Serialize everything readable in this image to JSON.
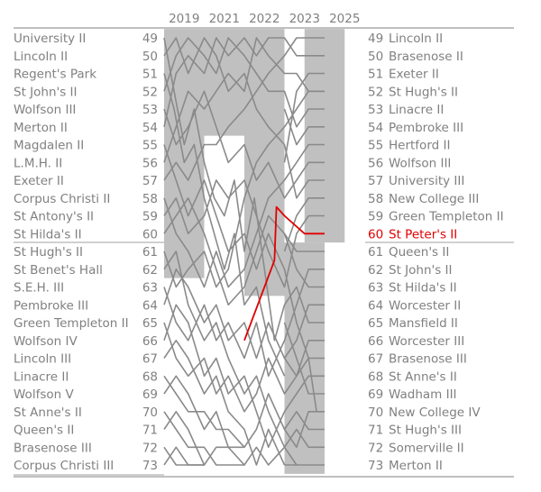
{
  "chart_data": {
    "type": "line",
    "title": "",
    "xlabel": "",
    "ylabel": "",
    "years": [
      "2019",
      "2021",
      "2022",
      "2023",
      "2025"
    ],
    "positions": [
      49,
      50,
      51,
      52,
      53,
      54,
      55,
      56,
      57,
      58,
      59,
      60,
      61,
      62,
      63,
      64,
      65,
      66,
      67,
      68,
      69,
      70,
      71,
      72,
      73
    ],
    "start_crews": [
      "University II",
      "Lincoln II",
      "Regent's Park",
      "St John's II",
      "Wolfson III",
      "Merton II",
      "Magdalen II",
      "L.M.H. II",
      "Exeter II",
      "Corpus Christi II",
      "St Antony's II",
      "St Hilda's II",
      "St Hugh's II",
      "St Benet's Hall",
      "S.E.H. III",
      "Pembroke III",
      "Green Templeton II",
      "Wolfson IV",
      "Lincoln III",
      "Linacre II",
      "Wolfson V",
      "St Anne's II",
      "Queen's II",
      "Brasenose III",
      "Corpus Christi III"
    ],
    "end_crews": [
      "Lincoln II",
      "Brasenose II",
      "Exeter II",
      "St Hugh's II",
      "Linacre II",
      "Pembroke III",
      "Hertford II",
      "Wolfson III",
      "University III",
      "New College III",
      "Green Templeton II",
      "St Peter's II",
      "Queen's II",
      "St John's II",
      "St Hilda's II",
      "Worcester II",
      "Mansfield II",
      "Worcester III",
      "Brasenose III",
      "St Anne's II",
      "Wadham III",
      "New College IV",
      "St Hugh's III",
      "Somerville II",
      "Merton II"
    ],
    "highlight": {
      "crew": "St Peter's II",
      "color": "#e00000",
      "end_position": 60,
      "trace": [
        [
          2,
          66
        ],
        [
          2.5,
          63
        ],
        [
          2.75,
          61.5
        ],
        [
          2.8,
          58.5
        ],
        [
          3,
          59
        ],
        [
          3.5,
          60
        ],
        [
          4,
          60
        ]
      ]
    },
    "division_boundary_after_position": 60,
    "shaded_blocks": [
      [
        0,
        49,
        60
      ],
      [
        0,
        60,
        61
      ],
      [
        0,
        61,
        62
      ],
      [
        1,
        49,
        54
      ],
      [
        2,
        49,
        60
      ],
      [
        2,
        60,
        63
      ],
      [
        3,
        61,
        73
      ],
      [
        3.5,
        49,
        60
      ]
    ],
    "traces": [
      [
        [
          0,
          49
        ],
        [
          0.25,
          52
        ],
        [
          0.5,
          55
        ],
        [
          0.75,
          53
        ],
        [
          1,
          56
        ],
        [
          1.25,
          58
        ],
        [
          1.5,
          59
        ],
        [
          1.75,
          57
        ],
        [
          2,
          61
        ],
        [
          2.25,
          58
        ],
        [
          2.5,
          62
        ],
        [
          2.75,
          66
        ],
        [
          3,
          64
        ]
      ],
      [
        [
          0,
          50
        ],
        [
          0.3,
          49
        ],
        [
          0.6,
          51
        ],
        [
          1,
          49
        ],
        [
          1.3,
          50
        ],
        [
          1.6,
          52
        ],
        [
          2,
          51
        ],
        [
          2.3,
          53
        ],
        [
          2.6,
          54
        ],
        [
          3,
          55
        ],
        [
          3.3,
          58
        ],
        [
          3.6,
          57
        ],
        [
          4,
          57
        ]
      ],
      [
        [
          0,
          51
        ],
        [
          0.25,
          53
        ],
        [
          0.5,
          56
        ],
        [
          0.75,
          55
        ],
        [
          1,
          58
        ],
        [
          1.25,
          60
        ],
        [
          1.5,
          62
        ],
        [
          1.75,
          60
        ],
        [
          2,
          64
        ],
        [
          2.3,
          63
        ],
        [
          2.6,
          66
        ],
        [
          3,
          68
        ]
      ],
      [
        [
          0,
          52
        ],
        [
          0.3,
          50
        ],
        [
          0.6,
          49
        ],
        [
          1,
          50
        ],
        [
          1.3,
          51
        ],
        [
          1.6,
          49
        ],
        [
          2,
          50
        ],
        [
          2.3,
          51
        ],
        [
          2.6,
          52
        ],
        [
          3,
          52
        ],
        [
          3.3,
          54
        ],
        [
          3.6,
          53
        ],
        [
          4,
          53
        ]
      ],
      [
        [
          0,
          53
        ],
        [
          0.3,
          55
        ],
        [
          0.6,
          54
        ],
        [
          1,
          52
        ],
        [
          1.3,
          54
        ],
        [
          1.6,
          56
        ],
        [
          2,
          55
        ],
        [
          2.3,
          57
        ],
        [
          2.6,
          56
        ],
        [
          3,
          58
        ],
        [
          3.3,
          57
        ],
        [
          3.6,
          56
        ],
        [
          4,
          56
        ]
      ],
      [
        [
          0,
          54
        ],
        [
          0.3,
          51
        ],
        [
          0.6,
          50
        ],
        [
          1,
          51
        ],
        [
          1.3,
          49
        ],
        [
          1.6,
          50
        ],
        [
          2,
          49
        ],
        [
          2.3,
          50
        ],
        [
          2.6,
          49
        ],
        [
          3,
          49
        ],
        [
          3.3,
          50
        ],
        [
          3.6,
          50
        ],
        [
          4,
          50
        ]
      ],
      [
        [
          0,
          55
        ],
        [
          0.3,
          57
        ],
        [
          0.6,
          59
        ],
        [
          1,
          57
        ],
        [
          1.3,
          59
        ],
        [
          1.6,
          61
        ],
        [
          2,
          60
        ],
        [
          2.3,
          62
        ],
        [
          2.6,
          60
        ],
        [
          3,
          62
        ],
        [
          3.3,
          65
        ],
        [
          3.6,
          67
        ],
        [
          3.8,
          70
        ]
      ],
      [
        [
          0,
          56
        ],
        [
          0.3,
          54
        ],
        [
          0.6,
          52
        ],
        [
          1,
          53
        ],
        [
          1.3,
          52
        ],
        [
          1.6,
          51
        ],
        [
          2,
          52
        ],
        [
          2.3,
          49
        ],
        [
          2.6,
          50
        ],
        [
          3,
          51
        ],
        [
          3.3,
          51
        ],
        [
          3.6,
          52
        ],
        [
          4,
          52
        ]
      ],
      [
        [
          0,
          57
        ],
        [
          0.3,
          56
        ],
        [
          0.6,
          57
        ],
        [
          1,
          55
        ],
        [
          1.3,
          55
        ],
        [
          1.6,
          54
        ],
        [
          2,
          53
        ],
        [
          2.3,
          52
        ],
        [
          2.6,
          51
        ],
        [
          3,
          50
        ],
        [
          3.3,
          49
        ],
        [
          3.6,
          49
        ],
        [
          4,
          49
        ]
      ],
      [
        [
          0,
          58
        ],
        [
          0.3,
          60
        ],
        [
          0.6,
          61
        ],
        [
          1,
          63
        ],
        [
          1.3,
          61
        ],
        [
          1.6,
          63
        ],
        [
          2,
          62
        ],
        [
          2.3,
          60
        ],
        [
          2.6,
          58
        ],
        [
          3,
          57
        ],
        [
          3.3,
          56
        ],
        [
          3.6,
          55
        ],
        [
          4,
          55
        ]
      ],
      [
        [
          0,
          59
        ],
        [
          0.3,
          58
        ],
        [
          0.6,
          60
        ],
        [
          1,
          59
        ],
        [
          1.3,
          57
        ],
        [
          1.6,
          58
        ],
        [
          2,
          57
        ],
        [
          2.3,
          59
        ],
        [
          2.6,
          61
        ],
        [
          3,
          63
        ],
        [
          3.3,
          60
        ],
        [
          3.6,
          59
        ],
        [
          4,
          59
        ]
      ],
      [
        [
          0,
          60
        ],
        [
          0.3,
          59
        ],
        [
          0.6,
          58
        ],
        [
          1,
          60
        ],
        [
          1.3,
          62
        ],
        [
          1.6,
          64
        ],
        [
          2,
          63
        ],
        [
          2.3,
          61
        ],
        [
          2.6,
          59
        ],
        [
          3,
          60
        ],
        [
          3.3,
          62
        ],
        [
          3.6,
          63
        ],
        [
          4,
          63
        ]
      ],
      [
        [
          0,
          61
        ],
        [
          0.3,
          63
        ],
        [
          0.6,
          62
        ],
        [
          1,
          61
        ],
        [
          1.3,
          63
        ],
        [
          1.6,
          62
        ],
        [
          2,
          58
        ],
        [
          2.3,
          56
        ],
        [
          2.6,
          55
        ],
        [
          3,
          54
        ],
        [
          3.3,
          53
        ],
        [
          3.6,
          52
        ],
        [
          4,
          52
        ]
      ],
      [
        [
          0,
          62
        ],
        [
          0.3,
          61
        ],
        [
          0.6,
          64
        ],
        [
          1,
          66
        ],
        [
          1.3,
          65
        ],
        [
          1.6,
          67
        ],
        [
          2,
          69
        ],
        [
          2.3,
          68
        ],
        [
          2.6,
          70
        ],
        [
          3,
          72
        ],
        [
          3.3,
          73
        ]
      ],
      [
        [
          0,
          63
        ],
        [
          0.3,
          65
        ],
        [
          0.6,
          66
        ],
        [
          1,
          64
        ],
        [
          1.3,
          66
        ],
        [
          1.6,
          65
        ],
        [
          2,
          67
        ],
        [
          2.3,
          65
        ],
        [
          2.6,
          68
        ],
        [
          3,
          66
        ],
        [
          3.3,
          64
        ],
        [
          3.6,
          62
        ],
        [
          4,
          62
        ]
      ],
      [
        [
          0,
          64
        ],
        [
          0.3,
          62
        ],
        [
          0.6,
          63
        ],
        [
          1,
          65
        ],
        [
          1.3,
          64
        ],
        [
          1.6,
          66
        ],
        [
          2,
          65
        ],
        [
          2.3,
          67
        ],
        [
          2.6,
          65
        ],
        [
          3,
          67
        ],
        [
          3.3,
          66
        ],
        [
          3.6,
          64
        ],
        [
          4,
          64
        ]
      ],
      [
        [
          0,
          65
        ],
        [
          0.3,
          67
        ],
        [
          0.6,
          68
        ],
        [
          1,
          67
        ],
        [
          1.3,
          69
        ],
        [
          1.6,
          68
        ],
        [
          2,
          70
        ],
        [
          2.3,
          69
        ],
        [
          2.6,
          67
        ],
        [
          3,
          69
        ],
        [
          3.3,
          68
        ],
        [
          3.6,
          66
        ],
        [
          4,
          66
        ]
      ],
      [
        [
          0,
          66
        ],
        [
          0.3,
          64
        ],
        [
          0.6,
          65
        ],
        [
          1,
          68
        ],
        [
          1.3,
          67
        ],
        [
          1.6,
          69
        ],
        [
          2,
          68
        ],
        [
          2.3,
          70
        ],
        [
          2.6,
          72
        ],
        [
          3,
          70
        ],
        [
          3.3,
          69
        ],
        [
          3.6,
          68
        ],
        [
          4,
          68
        ]
      ],
      [
        [
          0,
          67
        ],
        [
          0.3,
          66
        ],
        [
          0.6,
          67
        ],
        [
          1,
          69
        ],
        [
          1.3,
          68
        ],
        [
          1.6,
          70
        ],
        [
          2,
          71
        ],
        [
          2.3,
          73
        ],
        [
          2.6,
          71
        ],
        [
          3,
          73
        ]
      ],
      [
        [
          0,
          68
        ],
        [
          0.3,
          69
        ],
        [
          0.6,
          70
        ],
        [
          1,
          70
        ],
        [
          1.3,
          71
        ],
        [
          1.6,
          71
        ],
        [
          2,
          72
        ],
        [
          2.3,
          71
        ],
        [
          2.6,
          69
        ],
        [
          3,
          71
        ],
        [
          3.3,
          70
        ],
        [
          3.6,
          71
        ],
        [
          4,
          71
        ]
      ],
      [
        [
          0,
          69
        ],
        [
          0.3,
          68
        ],
        [
          0.6,
          69
        ],
        [
          1,
          71
        ],
        [
          1.3,
          70
        ],
        [
          1.6,
          72
        ],
        [
          2,
          73
        ],
        [
          2.3,
          72
        ],
        [
          2.6,
          73
        ],
        [
          3,
          72
        ],
        [
          3.3,
          71
        ],
        [
          3.6,
          72
        ],
        [
          4,
          72
        ]
      ],
      [
        [
          0,
          70
        ],
        [
          0.3,
          71
        ],
        [
          0.6,
          72
        ],
        [
          1,
          72
        ],
        [
          1.3,
          73
        ],
        [
          2,
          73
        ]
      ],
      [
        [
          0,
          71
        ],
        [
          0.3,
          70
        ],
        [
          0.6,
          71
        ],
        [
          1,
          73
        ],
        [
          1.3,
          72
        ],
        [
          2,
          72
        ]
      ],
      [
        [
          0,
          72
        ],
        [
          0.3,
          73
        ],
        [
          0.6,
          73
        ],
        [
          1,
          73
        ]
      ],
      [
        [
          0,
          73
        ],
        [
          0.3,
          72
        ],
        [
          0.6,
          73
        ],
        [
          1,
          73
        ]
      ],
      [
        [
          3,
          60
        ],
        [
          3.3,
          61
        ],
        [
          3.6,
          61
        ],
        [
          4,
          61
        ]
      ],
      [
        [
          3,
          64
        ],
        [
          3.3,
          63
        ],
        [
          3.6,
          65
        ],
        [
          4,
          65
        ]
      ],
      [
        [
          3,
          65
        ],
        [
          3.3,
          67
        ],
        [
          3.6,
          69
        ],
        [
          4,
          69
        ]
      ],
      [
        [
          3,
          71
        ],
        [
          3.3,
          72
        ],
        [
          3.6,
          70
        ],
        [
          4,
          70
        ]
      ],
      [
        [
          3,
          73
        ],
        [
          3.3,
          73
        ],
        [
          3.6,
          73
        ],
        [
          4,
          73
        ]
      ],
      [
        [
          3,
          67
        ],
        [
          3.3,
          68
        ],
        [
          3.6,
          67
        ],
        [
          4,
          67
        ]
      ],
      [
        [
          3,
          53
        ],
        [
          3.3,
          55
        ],
        [
          3.6,
          54
        ],
        [
          4,
          54
        ]
      ],
      [
        [
          3,
          56
        ],
        [
          3.3,
          52
        ],
        [
          3.6,
          51
        ],
        [
          4,
          51
        ]
      ],
      [
        [
          3,
          61
        ],
        [
          3.3,
          59
        ],
        [
          3.6,
          58
        ],
        [
          4,
          58
        ]
      ]
    ]
  }
}
